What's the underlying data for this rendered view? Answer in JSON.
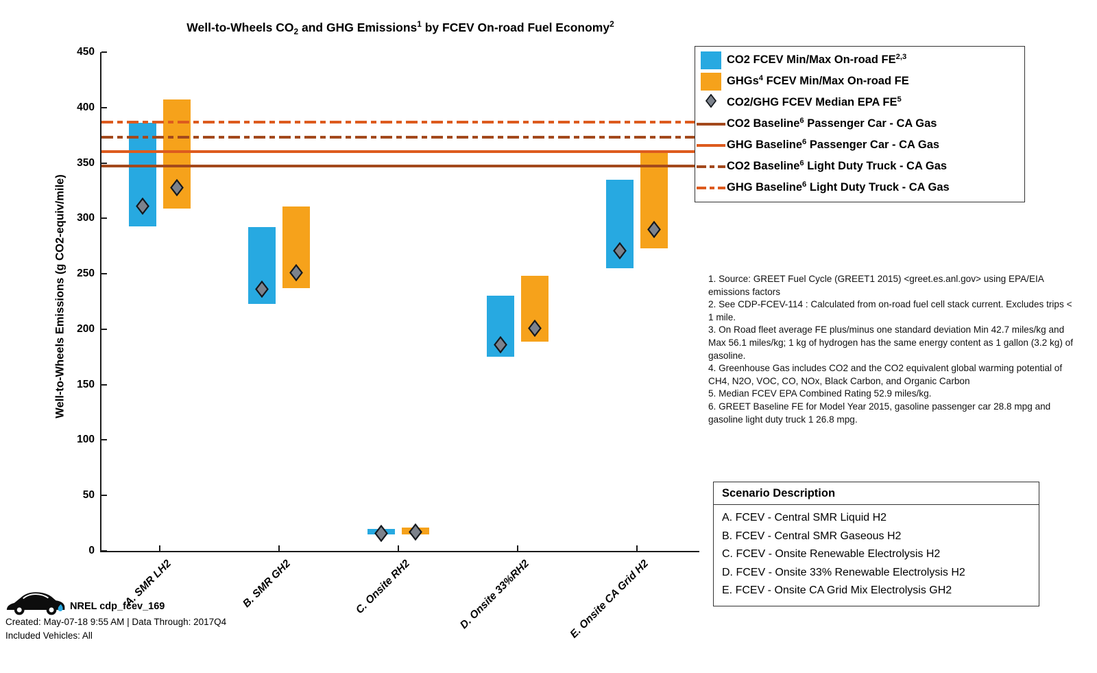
{
  "title": {
    "segments": [
      {
        "text": "Well-to-Wheels CO"
      },
      {
        "text": "2",
        "style": "sub"
      },
      {
        "text": " and GHG Emissions"
      },
      {
        "text": "1",
        "style": "sup"
      },
      {
        "text": " by FCEV On-road Fuel Economy"
      },
      {
        "text": "2",
        "style": "sup"
      }
    ]
  },
  "chart_data": {
    "type": "bar",
    "title": "Well-to-Wheels CO2 and GHG Emissions by FCEV On-road Fuel Economy",
    "ylabel": "Well-to-Wheels Emissions (g CO2-equiv/mile)",
    "xlabel": "",
    "ylim": [
      0,
      450
    ],
    "yticks": [
      0,
      50,
      100,
      150,
      200,
      250,
      300,
      350,
      400,
      450
    ],
    "grid": false,
    "legend_position": "outside-top-right",
    "categories": [
      "A. SMR LH2",
      "B. SMR GH2",
      "C. Onsite RH2",
      "D. Onsite 33%RH2",
      "E. Onsite CA Grid H2"
    ],
    "series": [
      {
        "name": "CO2 FCEV Min/Max On-road FE",
        "color": "#27A9E1",
        "min": [
          293,
          223,
          15,
          175,
          255
        ],
        "max": [
          386,
          292,
          20,
          230,
          335
        ],
        "median": [
          311,
          236,
          16,
          186,
          271
        ]
      },
      {
        "name": "GHGs FCEV Min/Max On-road FE",
        "color": "#F6A21B",
        "min": [
          309,
          237,
          15,
          189,
          273
        ],
        "max": [
          407,
          311,
          21,
          248,
          359
        ],
        "median": [
          328,
          251,
          17,
          201,
          290
        ]
      }
    ],
    "median_marker": {
      "name": "CO2/GHG FCEV Median EPA FE",
      "fill": "#7C828C",
      "stroke": "#14181d"
    },
    "baselines": [
      {
        "label": "CO2 Baseline Passenger Car - CA Gas",
        "value": 347,
        "color": "#A3491C",
        "style": "solid"
      },
      {
        "label": "GHG Baseline Passenger Car - CA Gas",
        "value": 360,
        "color": "#DD5B1E",
        "style": "solid"
      },
      {
        "label": "CO2 Baseline Light Duty Truck - CA Gas",
        "value": 373,
        "color": "#A3491C",
        "style": "dashdot"
      },
      {
        "label": "GHG Baseline Light Duty Truck - CA Gas",
        "value": 387,
        "color": "#DD5B1E",
        "style": "dashdot"
      }
    ]
  },
  "legend": {
    "items": [
      {
        "marker": "rect",
        "color": "#27A9E1",
        "segments": [
          {
            "text": "CO2 FCEV Min/Max On-road FE"
          },
          {
            "text": "2,3",
            "style": "sup"
          }
        ]
      },
      {
        "marker": "rect",
        "color": "#F6A21B",
        "segments": [
          {
            "text": "GHGs"
          },
          {
            "text": "4",
            "style": "sup"
          },
          {
            "text": " FCEV Min/Max On-road FE"
          }
        ]
      },
      {
        "marker": "diamond",
        "color": "#7C828C",
        "segments": [
          {
            "text": "CO2/GHG FCEV Median EPA FE"
          },
          {
            "text": "5",
            "style": "sup"
          }
        ]
      },
      {
        "marker": "line-solid",
        "color": "#A3491C",
        "segments": [
          {
            "text": "CO2 Baseline"
          },
          {
            "text": "6",
            "style": "sup"
          },
          {
            "text": " Passenger Car - CA Gas"
          }
        ]
      },
      {
        "marker": "line-solid",
        "color": "#DD5B1E",
        "segments": [
          {
            "text": "GHG Baseline"
          },
          {
            "text": "6",
            "style": "sup"
          },
          {
            "text": " Passenger Car - CA Gas"
          }
        ]
      },
      {
        "marker": "line-dashdot",
        "color": "#A3491C",
        "segments": [
          {
            "text": "CO2 Baseline"
          },
          {
            "text": "6",
            "style": "sup"
          },
          {
            "text": " Light Duty Truck - CA Gas"
          }
        ]
      },
      {
        "marker": "line-dashdot",
        "color": "#DD5B1E",
        "segments": [
          {
            "text": "GHG Baseline"
          },
          {
            "text": "6",
            "style": "sup"
          },
          {
            "text": " Light Duty Truck - CA Gas"
          }
        ]
      }
    ]
  },
  "notes": [
    "1. Source: GREET Fuel Cycle (GREET1 2015) <greet.es.anl.gov> using EPA/EIA emissions factors",
    "2. See CDP-FCEV-114 : Calculated from on-road fuel cell stack current. Excludes trips < 1 mile.",
    "3. On Road fleet average FE plus/minus one standard deviation Min 42.7 miles/kg and Max 56.1 miles/kg; 1 kg of hydrogen has the same energy content as 1 gallon (3.2 kg) of gasoline.",
    "4. Greenhouse Gas includes CO2 and the CO2 equivalent global warming potential of CH4, N2O, VOC, CO, NOx, Black Carbon, and Organic Carbon",
    "5. Median FCEV EPA Combined Rating 52.9 miles/kg.",
    "6. GREET Baseline FE for Model Year 2015, gasoline passenger car 28.8 mpg and gasoline light duty truck 1 26.8 mpg."
  ],
  "scenario_box": {
    "title": "Scenario Description",
    "items": [
      "A. FCEV - Central SMR Liquid H2",
      "B. FCEV - Central SMR Gaseous H2",
      "C. FCEV - Onsite Renewable Electrolysis H2",
      "D. FCEV - Onsite 33% Renewable Electrolysis H2",
      "E. FCEV - Onsite CA Grid Mix Electrolysis GH2"
    ]
  },
  "footer": {
    "brand": "NREL cdp_fcev_169",
    "created": "Created: May-07-18  9:55 AM | Data Through: 2017Q4",
    "included": "Included Vehicles: All",
    "car_icon_color": "#0d0d0d",
    "droplet_color": "#29A9E1"
  }
}
